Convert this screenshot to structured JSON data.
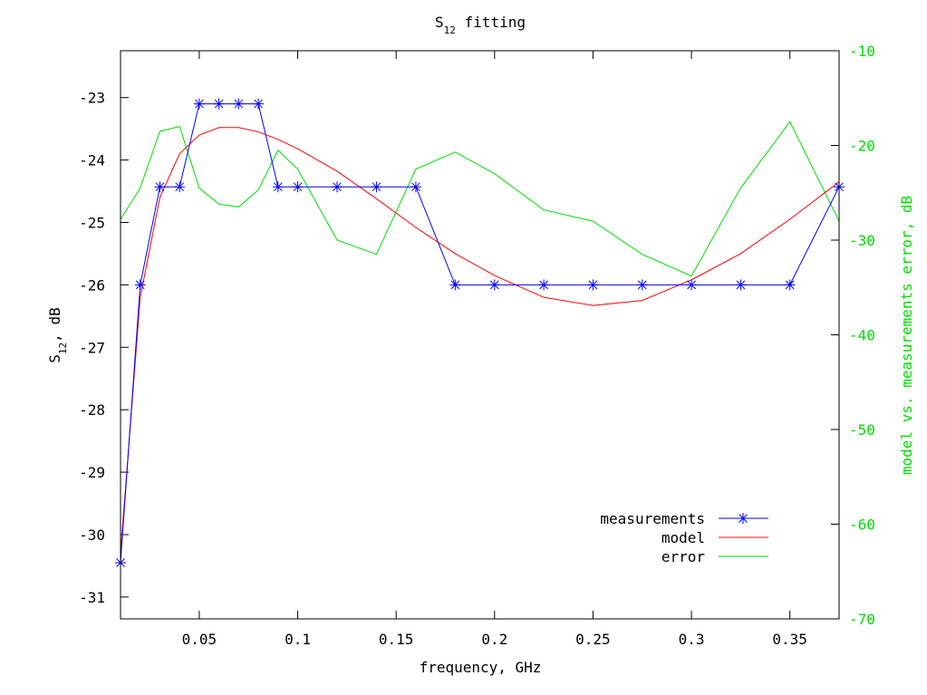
{
  "chart_data": {
    "type": "line",
    "title_main": "S",
    "title_sub": "12",
    "title_rest": " fitting",
    "xlabel": "frequency, GHz",
    "ylabel_main": "S",
    "ylabel_sub": "12",
    "ylabel_rest": ", dB",
    "y2label": "model vs. measurements error, dB",
    "xlim": [
      0.01,
      0.375
    ],
    "ylim": [
      -31.35,
      -22.25
    ],
    "y2lim": [
      -70,
      -10
    ],
    "xticks": [
      0.05,
      0.1,
      0.15,
      0.2,
      0.25,
      0.3,
      0.35
    ],
    "xtick_labels": [
      "0.05",
      "0.1",
      "0.15",
      "0.2",
      "0.25",
      "0.3",
      "0.35"
    ],
    "yticks": [
      -23,
      -24,
      -25,
      -26,
      -27,
      -28,
      -29,
      -30,
      -31
    ],
    "ytick_labels": [
      "-23",
      "-24",
      "-25",
      "-26",
      "-27",
      "-28",
      "-29",
      "-30",
      "-31"
    ],
    "y2ticks": [
      -10,
      -20,
      -30,
      -40,
      -50,
      -60,
      -70
    ],
    "y2tick_labels": [
      "-10",
      "-20",
      "-30",
      "-40",
      "-50",
      "-60",
      "-70"
    ],
    "grid": false,
    "legend_position": "bottom-right",
    "colors": {
      "measurements": "#0000ff",
      "model": "#ff0000",
      "error": "#00dd00",
      "right_axis": "#00dd00"
    },
    "series": [
      {
        "name": "measurements",
        "axis": "left",
        "marker": "star",
        "x": [
          0.01,
          0.02,
          0.03,
          0.04,
          0.05,
          0.06,
          0.07,
          0.08,
          0.09,
          0.1,
          0.12,
          0.14,
          0.16,
          0.18,
          0.2,
          0.225,
          0.25,
          0.275,
          0.3,
          0.325,
          0.35,
          0.375
        ],
        "y": [
          -30.45,
          -26.0,
          -24.43,
          -24.43,
          -23.1,
          -23.1,
          -23.1,
          -23.1,
          -24.43,
          -24.43,
          -24.43,
          -24.43,
          -24.43,
          -26.0,
          -26.0,
          -26.0,
          -26.0,
          -26.0,
          -26.0,
          -26.0,
          -26.0,
          -24.43
        ]
      },
      {
        "name": "model",
        "axis": "left",
        "marker": "none",
        "x": [
          0.01,
          0.02,
          0.03,
          0.04,
          0.05,
          0.06,
          0.07,
          0.08,
          0.09,
          0.1,
          0.12,
          0.14,
          0.16,
          0.18,
          0.2,
          0.225,
          0.25,
          0.275,
          0.3,
          0.325,
          0.35,
          0.375
        ],
        "y": [
          -30.3,
          -26.2,
          -24.6,
          -23.9,
          -23.6,
          -23.48,
          -23.48,
          -23.55,
          -23.67,
          -23.82,
          -24.18,
          -24.62,
          -25.08,
          -25.5,
          -25.85,
          -26.2,
          -26.33,
          -26.25,
          -25.92,
          -25.5,
          -24.95,
          -24.35
        ]
      },
      {
        "name": "error",
        "axis": "right",
        "marker": "none",
        "x": [
          0.01,
          0.02,
          0.03,
          0.04,
          0.05,
          0.06,
          0.07,
          0.08,
          0.09,
          0.1,
          0.12,
          0.14,
          0.16,
          0.18,
          0.2,
          0.225,
          0.25,
          0.275,
          0.3,
          0.325,
          0.35,
          0.375
        ],
        "y": [
          -27.8,
          -24.5,
          -18.5,
          -18.0,
          -24.5,
          -26.2,
          -26.5,
          -24.7,
          -20.5,
          -22.5,
          -30.0,
          -31.5,
          -22.5,
          -20.7,
          -23.0,
          -26.8,
          -28.0,
          -31.5,
          -33.8,
          -24.5,
          -17.5,
          -28.0
        ]
      }
    ]
  }
}
